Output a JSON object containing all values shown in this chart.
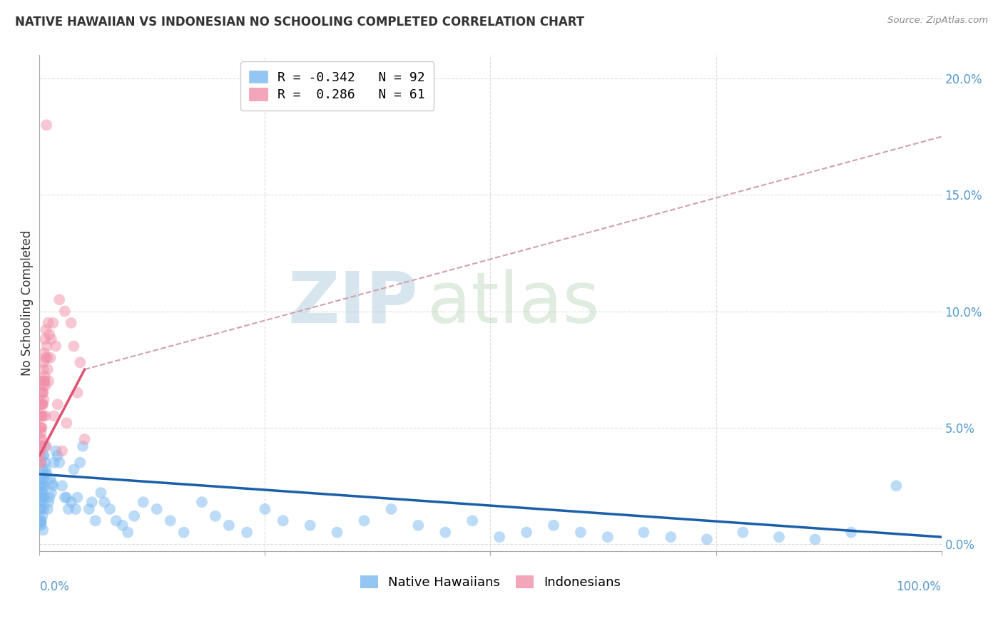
{
  "title": "NATIVE HAWAIIAN VS INDONESIAN NO SCHOOLING COMPLETED CORRELATION CHART",
  "source": "Source: ZipAtlas.com",
  "ylabel": "No Schooling Completed",
  "watermark_zip": "ZIP",
  "watermark_atlas": "atlas",
  "legend_label_native": "Native Hawaiians",
  "legend_label_indonesian": "Indonesians",
  "blue_scatter_color": "#7ab8f0",
  "pink_scatter_color": "#f090a8",
  "blue_line_color": "#1a5fa8",
  "pink_line_color": "#e05070",
  "pink_dash_color": "#d0a0b0",
  "right_axis_color": "#5599cc",
  "title_color": "#333333",
  "source_color": "#888888",
  "ylabel_color": "#333333",
  "grid_color": "#dddddd",
  "ytick_labels": [
    "0.0%",
    "5.0%",
    "10.0%",
    "15.0%",
    "20.0%"
  ],
  "ytick_values": [
    0.0,
    5.0,
    10.0,
    15.0,
    20.0
  ],
  "xlim": [
    0.0,
    100.0
  ],
  "ylim": [
    -0.3,
    21.0
  ],
  "blue_trend_x0": 0.0,
  "blue_trend_y0": 3.0,
  "blue_trend_x1": 100.0,
  "blue_trend_y1": 0.3,
  "pink_solid_x0": 0.0,
  "pink_solid_y0": 3.8,
  "pink_solid_x1": 5.0,
  "pink_solid_y1": 7.5,
  "pink_dash_x0": 5.0,
  "pink_dash_y0": 7.5,
  "pink_dash_x1": 100.0,
  "pink_dash_y1": 17.5,
  "native_hawaiian_x": [
    0.15,
    0.2,
    0.3,
    0.1,
    0.4,
    0.25,
    0.18,
    0.35,
    0.12,
    0.28,
    0.22,
    0.42,
    0.5,
    0.6,
    0.32,
    0.2,
    0.38,
    0.15,
    0.45,
    0.55,
    0.7,
    0.28,
    0.18,
    0.38,
    0.12,
    0.48,
    0.33,
    0.22,
    0.65,
    0.42,
    1.2,
    1.5,
    1.0,
    1.8,
    1.6,
    1.3,
    0.9,
    2.2,
    2.0,
    1.4,
    2.8,
    3.2,
    2.5,
    3.8,
    3.0,
    3.5,
    4.2,
    4.0,
    4.8,
    4.5,
    5.5,
    5.8,
    6.2,
    6.8,
    7.2,
    7.8,
    8.5,
    9.2,
    9.8,
    10.5,
    11.5,
    13.0,
    14.5,
    16.0,
    18.0,
    19.5,
    21.0,
    23.0,
    25.0,
    27.0,
    30.0,
    33.0,
    36.0,
    39.0,
    42.0,
    45.0,
    48.0,
    51.0,
    54.0,
    57.0,
    60.0,
    63.0,
    67.0,
    70.0,
    74.0,
    78.0,
    82.0,
    86.0,
    90.0,
    95.0,
    0.8,
    1.1
  ],
  "native_hawaiian_y": [
    2.8,
    3.5,
    2.2,
    1.5,
    3.8,
    2.5,
    2.0,
    3.2,
    1.8,
    2.6,
    2.2,
    3.0,
    3.8,
    4.2,
    1.2,
    1.0,
    0.6,
    0.8,
    1.5,
    2.0,
    3.2,
    1.8,
    0.9,
    2.4,
    1.0,
    2.5,
    2.0,
    1.5,
    3.5,
    2.8,
    2.8,
    2.5,
    1.8,
    4.0,
    3.5,
    2.2,
    1.5,
    3.5,
    3.8,
    2.6,
    2.0,
    1.5,
    2.5,
    3.2,
    2.0,
    1.8,
    2.0,
    1.5,
    4.2,
    3.5,
    1.5,
    1.8,
    1.0,
    2.2,
    1.8,
    1.5,
    1.0,
    0.8,
    0.5,
    1.2,
    1.8,
    1.5,
    1.0,
    0.5,
    1.8,
    1.2,
    0.8,
    0.5,
    1.5,
    1.0,
    0.8,
    0.5,
    1.0,
    1.5,
    0.8,
    0.5,
    1.0,
    0.3,
    0.5,
    0.8,
    0.5,
    0.3,
    0.5,
    0.3,
    0.2,
    0.5,
    0.3,
    0.2,
    0.5,
    2.5,
    3.0,
    2.0
  ],
  "indonesian_x": [
    0.08,
    0.12,
    0.18,
    0.22,
    0.28,
    0.35,
    0.42,
    0.55,
    0.68,
    0.8,
    0.1,
    0.15,
    0.2,
    0.25,
    0.3,
    0.38,
    0.45,
    0.52,
    0.6,
    0.72,
    0.85,
    0.95,
    1.1,
    1.3,
    1.5,
    1.8,
    2.2,
    2.8,
    3.5,
    4.5,
    0.13,
    0.17,
    0.23,
    0.32,
    0.4,
    0.48,
    0.58,
    0.65,
    0.75,
    0.9,
    1.0,
    1.2,
    1.6,
    2.0,
    2.5,
    3.0,
    3.8,
    4.2,
    5.0,
    0.05,
    0.08,
    0.12,
    0.16,
    0.22,
    0.28,
    0.35,
    0.42,
    0.55,
    0.65,
    0.78
  ],
  "indonesian_y": [
    3.5,
    5.0,
    5.5,
    4.2,
    6.5,
    6.0,
    7.5,
    7.0,
    8.0,
    8.5,
    4.0,
    5.5,
    6.0,
    5.0,
    7.0,
    6.8,
    7.8,
    8.2,
    8.8,
    9.2,
    8.0,
    9.5,
    9.0,
    8.8,
    9.5,
    8.5,
    10.5,
    10.0,
    9.5,
    7.8,
    4.5,
    5.0,
    6.0,
    6.5,
    5.5,
    6.2,
    7.2,
    6.8,
    4.2,
    7.5,
    7.0,
    8.0,
    5.5,
    6.0,
    4.0,
    5.2,
    8.5,
    6.5,
    4.5,
    3.8,
    4.2,
    3.5,
    4.8,
    5.5,
    4.5,
    6.0,
    6.5,
    7.0,
    5.5,
    18.0
  ]
}
